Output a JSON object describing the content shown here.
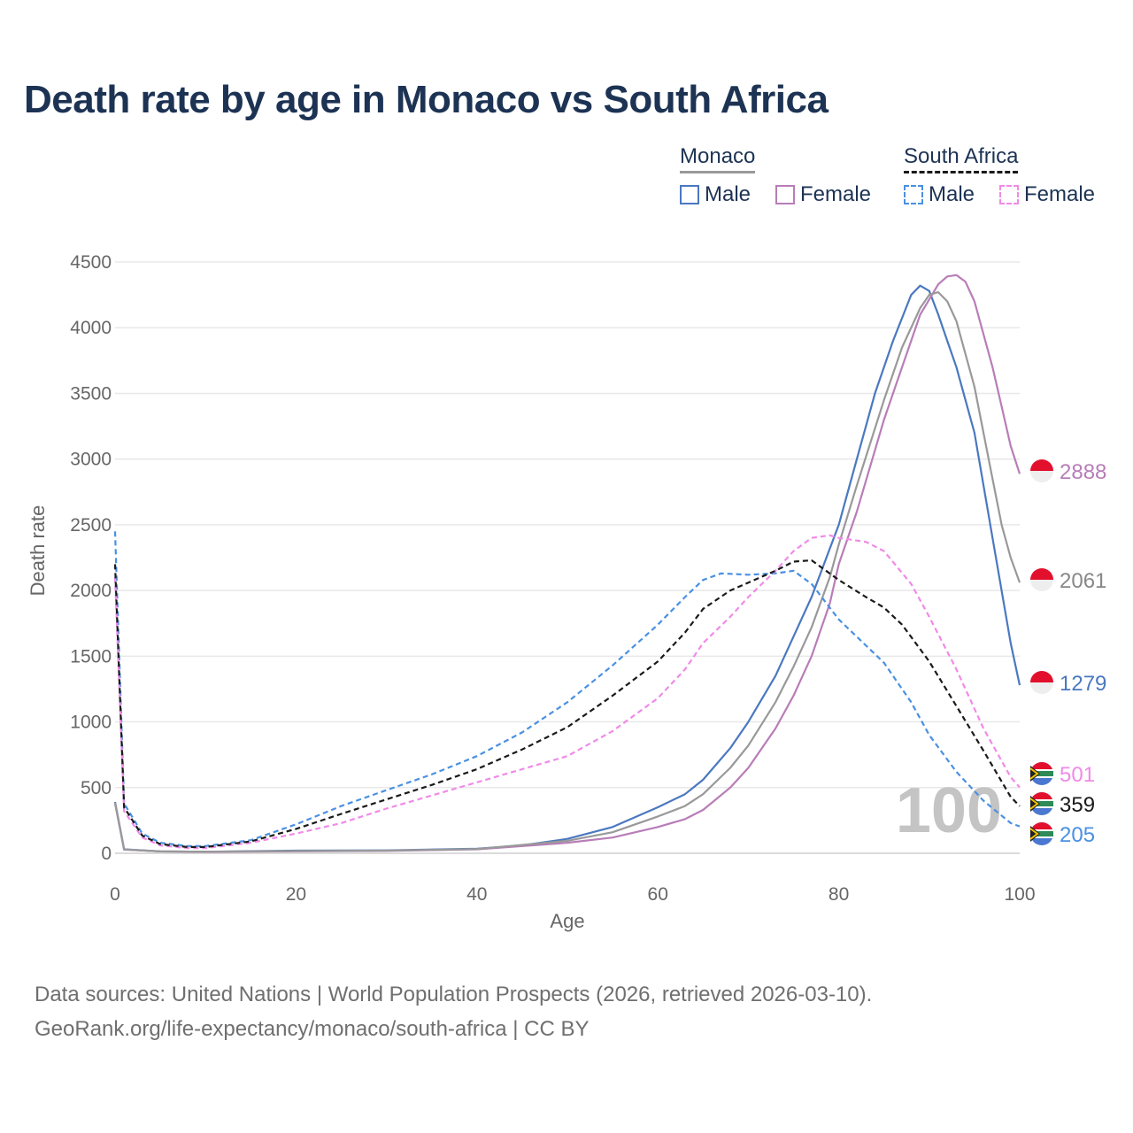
{
  "chart_data": {
    "type": "line",
    "title": "Death rate by age in Monaco vs South Africa",
    "xlabel": "Age",
    "ylabel": "Death rate",
    "xlim": [
      0,
      100
    ],
    "ylim": [
      0,
      4500
    ],
    "xticks": [
      "0",
      "20",
      "40",
      "60",
      "80",
      "100"
    ],
    "yticks": [
      "0",
      "500",
      "1000",
      "1500",
      "2000",
      "2500",
      "3000",
      "3500",
      "4000",
      "4500"
    ],
    "grid": true,
    "watermark": "100",
    "legend": {
      "groups": [
        {
          "label": "Monaco",
          "items": [
            "Male",
            "Female"
          ]
        },
        {
          "label": "South Africa",
          "items": [
            "Male",
            "Female"
          ]
        }
      ]
    },
    "series": [
      {
        "name": "Monaco Male",
        "country": "Monaco",
        "sex": "Male",
        "color": "#4a78c0",
        "dashed": false,
        "end_label": "1279",
        "points": [
          [
            0,
            390
          ],
          [
            1,
            30
          ],
          [
            5,
            15
          ],
          [
            10,
            12
          ],
          [
            20,
            20
          ],
          [
            30,
            22
          ],
          [
            40,
            35
          ],
          [
            45,
            60
          ],
          [
            50,
            110
          ],
          [
            55,
            200
          ],
          [
            60,
            350
          ],
          [
            63,
            450
          ],
          [
            65,
            560
          ],
          [
            68,
            800
          ],
          [
            70,
            1000
          ],
          [
            73,
            1350
          ],
          [
            75,
            1650
          ],
          [
            77,
            1950
          ],
          [
            80,
            2500
          ],
          [
            82,
            3000
          ],
          [
            84,
            3500
          ],
          [
            86,
            3900
          ],
          [
            88,
            4250
          ],
          [
            89,
            4320
          ],
          [
            90,
            4280
          ],
          [
            91,
            4100
          ],
          [
            92,
            3900
          ],
          [
            93,
            3700
          ],
          [
            95,
            3200
          ],
          [
            97,
            2400
          ],
          [
            99,
            1600
          ],
          [
            100,
            1279
          ]
        ]
      },
      {
        "name": "Monaco Female",
        "country": "Monaco",
        "sex": "Female",
        "color": "#b87db8",
        "dashed": false,
        "end_label": "2888",
        "points": [
          [
            0,
            380
          ],
          [
            1,
            28
          ],
          [
            5,
            14
          ],
          [
            10,
            11
          ],
          [
            20,
            15
          ],
          [
            30,
            18
          ],
          [
            40,
            30
          ],
          [
            50,
            80
          ],
          [
            55,
            120
          ],
          [
            60,
            200
          ],
          [
            63,
            260
          ],
          [
            65,
            330
          ],
          [
            68,
            500
          ],
          [
            70,
            650
          ],
          [
            73,
            950
          ],
          [
            75,
            1200
          ],
          [
            77,
            1500
          ],
          [
            79,
            1900
          ],
          [
            80,
            2200
          ],
          [
            82,
            2600
          ],
          [
            85,
            3300
          ],
          [
            87,
            3700
          ],
          [
            89,
            4100
          ],
          [
            91,
            4330
          ],
          [
            92,
            4390
          ],
          [
            93,
            4400
          ],
          [
            94,
            4350
          ],
          [
            95,
            4200
          ],
          [
            96,
            3950
          ],
          [
            97,
            3700
          ],
          [
            98,
            3400
          ],
          [
            99,
            3100
          ],
          [
            100,
            2888
          ]
        ]
      },
      {
        "name": "Monaco Total",
        "country": "Monaco",
        "sex": "Total",
        "color": "#999999",
        "dashed": false,
        "end_label": "2061",
        "points": [
          [
            0,
            385
          ],
          [
            1,
            29
          ],
          [
            5,
            14
          ],
          [
            10,
            12
          ],
          [
            20,
            17
          ],
          [
            30,
            20
          ],
          [
            40,
            32
          ],
          [
            50,
            95
          ],
          [
            55,
            160
          ],
          [
            60,
            280
          ],
          [
            63,
            360
          ],
          [
            65,
            450
          ],
          [
            68,
            650
          ],
          [
            70,
            820
          ],
          [
            73,
            1150
          ],
          [
            75,
            1420
          ],
          [
            77,
            1720
          ],
          [
            79,
            2100
          ],
          [
            80,
            2350
          ],
          [
            82,
            2800
          ],
          [
            85,
            3450
          ],
          [
            87,
            3850
          ],
          [
            89,
            4150
          ],
          [
            90,
            4250
          ],
          [
            91,
            4270
          ],
          [
            92,
            4200
          ],
          [
            93,
            4050
          ],
          [
            94,
            3800
          ],
          [
            95,
            3550
          ],
          [
            96,
            3200
          ],
          [
            97,
            2850
          ],
          [
            98,
            2500
          ],
          [
            99,
            2250
          ],
          [
            100,
            2061
          ]
        ]
      },
      {
        "name": "South Africa Male",
        "country": "South Africa",
        "sex": "Male",
        "color": "#4a90e2",
        "dashed": true,
        "end_label": "205",
        "points": [
          [
            0,
            2450
          ],
          [
            1,
            380
          ],
          [
            3,
            150
          ],
          [
            5,
            80
          ],
          [
            8,
            55
          ],
          [
            10,
            55
          ],
          [
            15,
            100
          ],
          [
            20,
            220
          ],
          [
            25,
            360
          ],
          [
            30,
            480
          ],
          [
            35,
            600
          ],
          [
            40,
            740
          ],
          [
            45,
            920
          ],
          [
            50,
            1150
          ],
          [
            55,
            1430
          ],
          [
            60,
            1740
          ],
          [
            63,
            1950
          ],
          [
            65,
            2080
          ],
          [
            67,
            2130
          ],
          [
            70,
            2120
          ],
          [
            73,
            2130
          ],
          [
            75,
            2150
          ],
          [
            77,
            2050
          ],
          [
            80,
            1780
          ],
          [
            85,
            1450
          ],
          [
            88,
            1150
          ],
          [
            90,
            900
          ],
          [
            93,
            620
          ],
          [
            96,
            400
          ],
          [
            99,
            230
          ],
          [
            100,
            205
          ]
        ]
      },
      {
        "name": "South Africa Female",
        "country": "South Africa",
        "sex": "Female",
        "color": "#f08ae8",
        "dashed": true,
        "end_label": "501",
        "points": [
          [
            0,
            2100
          ],
          [
            1,
            320
          ],
          [
            3,
            120
          ],
          [
            5,
            60
          ],
          [
            8,
            40
          ],
          [
            10,
            40
          ],
          [
            15,
            80
          ],
          [
            20,
            150
          ],
          [
            25,
            230
          ],
          [
            30,
            340
          ],
          [
            35,
            440
          ],
          [
            40,
            540
          ],
          [
            45,
            640
          ],
          [
            50,
            740
          ],
          [
            55,
            930
          ],
          [
            60,
            1180
          ],
          [
            63,
            1400
          ],
          [
            65,
            1600
          ],
          [
            68,
            1800
          ],
          [
            70,
            1950
          ],
          [
            73,
            2150
          ],
          [
            75,
            2300
          ],
          [
            77,
            2400
          ],
          [
            79,
            2420
          ],
          [
            80,
            2400
          ],
          [
            83,
            2370
          ],
          [
            85,
            2300
          ],
          [
            88,
            2050
          ],
          [
            90,
            1800
          ],
          [
            93,
            1400
          ],
          [
            96,
            950
          ],
          [
            99,
            580
          ],
          [
            100,
            501
          ]
        ]
      },
      {
        "name": "South Africa Total",
        "country": "South Africa",
        "sex": "Total",
        "color": "#1a1a1a",
        "dashed": true,
        "end_label": "359",
        "points": [
          [
            0,
            2200
          ],
          [
            1,
            350
          ],
          [
            3,
            135
          ],
          [
            5,
            70
          ],
          [
            8,
            48
          ],
          [
            10,
            48
          ],
          [
            15,
            90
          ],
          [
            20,
            185
          ],
          [
            25,
            300
          ],
          [
            30,
            410
          ],
          [
            35,
            520
          ],
          [
            40,
            640
          ],
          [
            45,
            790
          ],
          [
            50,
            960
          ],
          [
            55,
            1200
          ],
          [
            60,
            1460
          ],
          [
            63,
            1680
          ],
          [
            65,
            1860
          ],
          [
            68,
            2000
          ],
          [
            70,
            2060
          ],
          [
            73,
            2150
          ],
          [
            75,
            2220
          ],
          [
            77,
            2230
          ],
          [
            80,
            2080
          ],
          [
            83,
            1950
          ],
          [
            85,
            1870
          ],
          [
            87,
            1740
          ],
          [
            90,
            1460
          ],
          [
            93,
            1120
          ],
          [
            96,
            780
          ],
          [
            99,
            430
          ],
          [
            100,
            359
          ]
        ]
      }
    ]
  },
  "footer": {
    "line1": "Data sources: United Nations | World Population Prospects (2026, retrieved 2026-03-10).",
    "line2": "GeoRank.org/life-expectancy/monaco/south-africa | CC BY"
  }
}
